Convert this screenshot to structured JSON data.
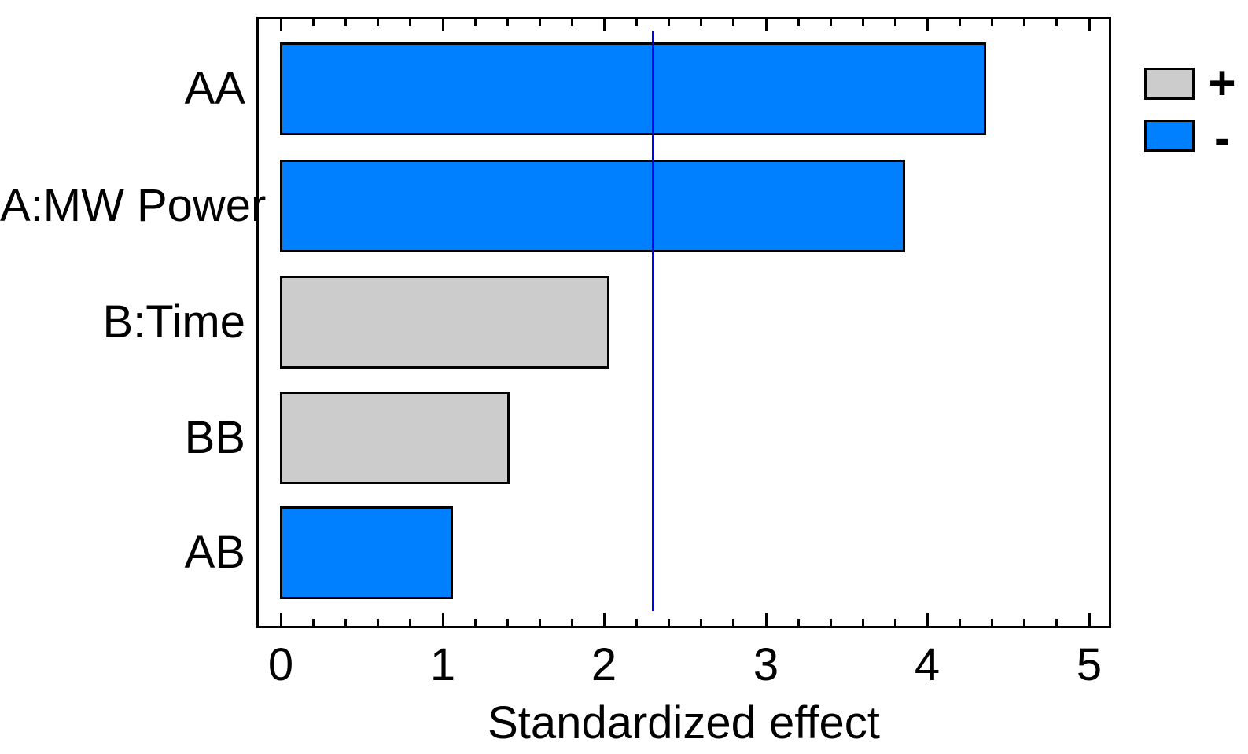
{
  "chart_data": {
    "type": "bar",
    "orientation": "horizontal",
    "title": "",
    "xlabel": "Standardized effect",
    "ylabel": "",
    "categories": [
      "AA",
      "A:MW Power",
      "B:Time",
      "BB",
      "AB"
    ],
    "values": [
      4.37,
      3.87,
      2.04,
      1.42,
      1.07
    ],
    "signs": [
      "-",
      "-",
      "+",
      "+",
      "-"
    ],
    "reference_line": 2.3,
    "xlim": [
      -0.15,
      5.14
    ],
    "x_ticks": [
      0,
      1,
      2,
      3,
      4,
      5
    ],
    "x_tick_labels": [
      "0",
      "1",
      "2",
      "3",
      "4",
      "5"
    ],
    "minor_tick_step": 0.2,
    "grid": false,
    "legend_position": "upper-right-outside",
    "legend": [
      {
        "label": "+",
        "sign": "positive",
        "color": "#CCCCCC"
      },
      {
        "label": "-",
        "sign": "negative",
        "color": "#0080FF"
      }
    ],
    "colors": {
      "positive": "#CCCCCC",
      "negative": "#0080FF",
      "reference_line": "#0000FF",
      "bar_border": "#000000"
    }
  }
}
